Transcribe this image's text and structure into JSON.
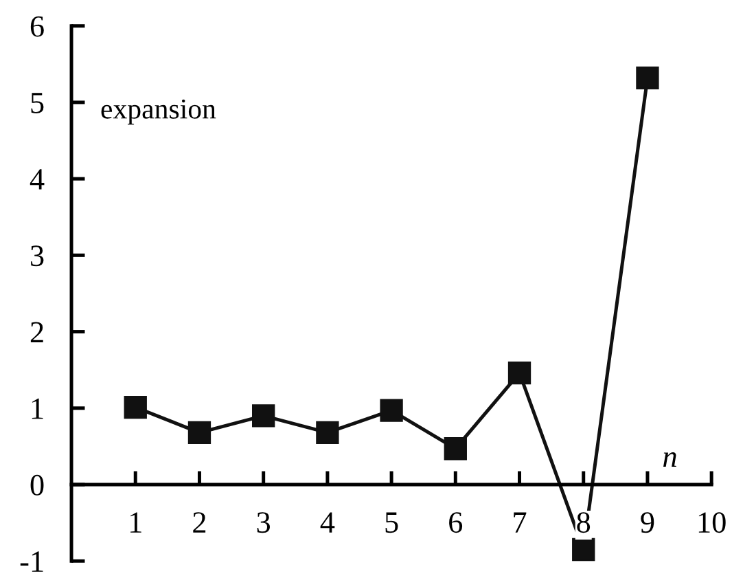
{
  "chart_data": {
    "type": "line",
    "xlabel": "n",
    "annotations": [
      "expansion"
    ],
    "x": [
      1,
      2,
      3,
      4,
      5,
      6,
      7,
      8,
      9
    ],
    "series": [
      {
        "color": "#111111",
        "values": [
          1.01,
          0.68,
          0.9,
          0.68,
          0.97,
          0.47,
          1.46,
          -0.85,
          5.32
        ]
      }
    ],
    "xlim": [
      0,
      10
    ],
    "xticks": [
      1,
      2,
      3,
      4,
      5,
      6,
      7,
      8,
      9,
      10
    ],
    "ylim": [
      -1,
      6
    ],
    "yticks": [
      -1,
      0,
      1,
      2,
      3,
      4,
      5,
      6
    ],
    "marker": "square",
    "line_style": "solid",
    "grid": false,
    "legend": false
  }
}
